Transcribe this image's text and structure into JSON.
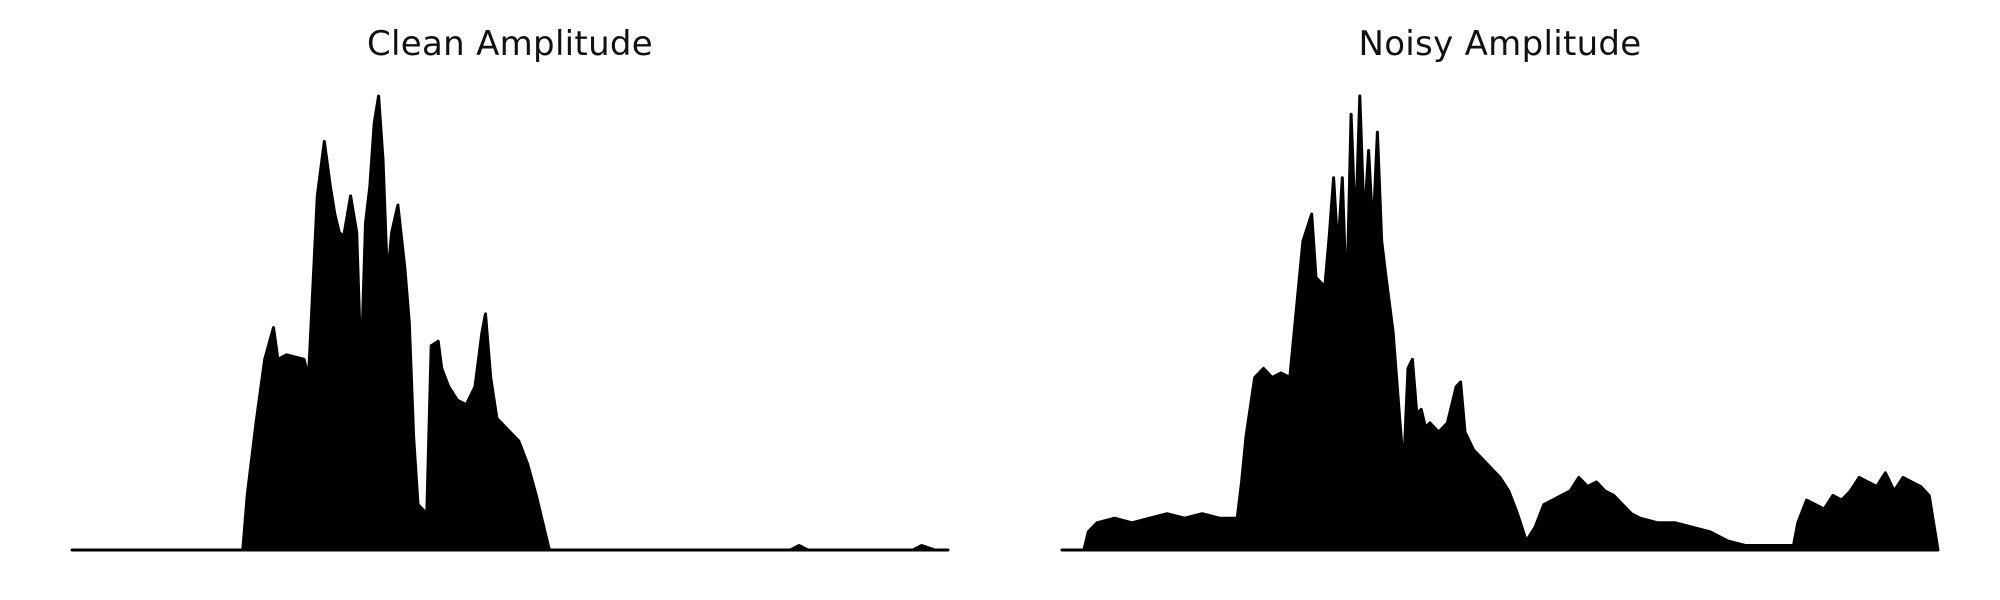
{
  "colors": {
    "waveform": "#000000",
    "background": "#ffffff"
  },
  "chart_data": [
    {
      "type": "area",
      "title": "Clean Amplitude",
      "grid": false,
      "axes_visible": false,
      "xlim": [
        0,
        1
      ],
      "ylim": [
        0,
        1
      ],
      "series": [
        {
          "values": [
            [
              0.0,
              0.0
            ],
            [
              0.195,
              0.0
            ],
            [
              0.2,
              0.12
            ],
            [
              0.21,
              0.28
            ],
            [
              0.22,
              0.42
            ],
            [
              0.23,
              0.49
            ],
            [
              0.235,
              0.42
            ],
            [
              0.245,
              0.43
            ],
            [
              0.265,
              0.42
            ],
            [
              0.27,
              0.38
            ],
            [
              0.28,
              0.78
            ],
            [
              0.288,
              0.9
            ],
            [
              0.295,
              0.8
            ],
            [
              0.3,
              0.74
            ],
            [
              0.305,
              0.7
            ],
            [
              0.31,
              0.69
            ],
            [
              0.318,
              0.78
            ],
            [
              0.325,
              0.7
            ],
            [
              0.33,
              0.4
            ],
            [
              0.335,
              0.72
            ],
            [
              0.34,
              0.8
            ],
            [
              0.345,
              0.94
            ],
            [
              0.35,
              1.0
            ],
            [
              0.355,
              0.86
            ],
            [
              0.36,
              0.6
            ],
            [
              0.365,
              0.7
            ],
            [
              0.372,
              0.76
            ],
            [
              0.38,
              0.62
            ],
            [
              0.385,
              0.5
            ],
            [
              0.39,
              0.25
            ],
            [
              0.395,
              0.1
            ],
            [
              0.405,
              0.08
            ],
            [
              0.41,
              0.45
            ],
            [
              0.418,
              0.46
            ],
            [
              0.422,
              0.4
            ],
            [
              0.43,
              0.36
            ],
            [
              0.44,
              0.33
            ],
            [
              0.45,
              0.32
            ],
            [
              0.46,
              0.36
            ],
            [
              0.468,
              0.48
            ],
            [
              0.472,
              0.52
            ],
            [
              0.478,
              0.38
            ],
            [
              0.485,
              0.29
            ],
            [
              0.5,
              0.26
            ],
            [
              0.51,
              0.24
            ],
            [
              0.52,
              0.19
            ],
            [
              0.53,
              0.12
            ],
            [
              0.54,
              0.04
            ],
            [
              0.545,
              0.0
            ],
            [
              0.82,
              0.0
            ],
            [
              0.83,
              0.01
            ],
            [
              0.84,
              0.0
            ],
            [
              0.96,
              0.0
            ],
            [
              0.97,
              0.01
            ],
            [
              0.985,
              0.0
            ],
            [
              1.0,
              0.0
            ]
          ]
        }
      ]
    },
    {
      "type": "area",
      "title": "Noisy Amplitude",
      "grid": false,
      "axes_visible": false,
      "xlim": [
        0,
        1
      ],
      "ylim": [
        0,
        1
      ],
      "series": [
        {
          "values": [
            [
              0.0,
              0.0
            ],
            [
              0.025,
              0.0
            ],
            [
              0.03,
              0.04
            ],
            [
              0.04,
              0.06
            ],
            [
              0.06,
              0.07
            ],
            [
              0.08,
              0.06
            ],
            [
              0.1,
              0.07
            ],
            [
              0.12,
              0.08
            ],
            [
              0.14,
              0.07
            ],
            [
              0.16,
              0.08
            ],
            [
              0.18,
              0.07
            ],
            [
              0.2,
              0.07
            ],
            [
              0.205,
              0.15
            ],
            [
              0.21,
              0.25
            ],
            [
              0.22,
              0.38
            ],
            [
              0.23,
              0.4
            ],
            [
              0.24,
              0.38
            ],
            [
              0.25,
              0.39
            ],
            [
              0.26,
              0.38
            ],
            [
              0.275,
              0.68
            ],
            [
              0.285,
              0.74
            ],
            [
              0.29,
              0.6
            ],
            [
              0.3,
              0.58
            ],
            [
              0.305,
              0.69
            ],
            [
              0.31,
              0.82
            ],
            [
              0.315,
              0.66
            ],
            [
              0.32,
              0.82
            ],
            [
              0.325,
              0.54
            ],
            [
              0.33,
              0.96
            ],
            [
              0.335,
              0.7
            ],
            [
              0.34,
              1.0
            ],
            [
              0.345,
              0.72
            ],
            [
              0.35,
              0.88
            ],
            [
              0.355,
              0.7
            ],
            [
              0.36,
              0.92
            ],
            [
              0.365,
              0.68
            ],
            [
              0.37,
              0.6
            ],
            [
              0.378,
              0.48
            ],
            [
              0.385,
              0.3
            ],
            [
              0.39,
              0.18
            ],
            [
              0.395,
              0.4
            ],
            [
              0.4,
              0.42
            ],
            [
              0.405,
              0.3
            ],
            [
              0.41,
              0.31
            ],
            [
              0.415,
              0.27
            ],
            [
              0.42,
              0.28
            ],
            [
              0.43,
              0.26
            ],
            [
              0.44,
              0.28
            ],
            [
              0.45,
              0.36
            ],
            [
              0.455,
              0.37
            ],
            [
              0.46,
              0.26
            ],
            [
              0.47,
              0.22
            ],
            [
              0.48,
              0.2
            ],
            [
              0.49,
              0.18
            ],
            [
              0.5,
              0.16
            ],
            [
              0.51,
              0.13
            ],
            [
              0.52,
              0.08
            ],
            [
              0.53,
              0.02
            ],
            [
              0.54,
              0.05
            ],
            [
              0.55,
              0.1
            ],
            [
              0.56,
              0.11
            ],
            [
              0.57,
              0.12
            ],
            [
              0.58,
              0.13
            ],
            [
              0.59,
              0.16
            ],
            [
              0.6,
              0.14
            ],
            [
              0.61,
              0.15
            ],
            [
              0.62,
              0.13
            ],
            [
              0.63,
              0.12
            ],
            [
              0.64,
              0.1
            ],
            [
              0.65,
              0.08
            ],
            [
              0.66,
              0.07
            ],
            [
              0.68,
              0.06
            ],
            [
              0.7,
              0.06
            ],
            [
              0.72,
              0.05
            ],
            [
              0.74,
              0.04
            ],
            [
              0.76,
              0.02
            ],
            [
              0.78,
              0.01
            ],
            [
              0.82,
              0.01
            ],
            [
              0.835,
              0.01
            ],
            [
              0.84,
              0.06
            ],
            [
              0.85,
              0.11
            ],
            [
              0.86,
              0.1
            ],
            [
              0.87,
              0.09
            ],
            [
              0.88,
              0.12
            ],
            [
              0.89,
              0.11
            ],
            [
              0.9,
              0.13
            ],
            [
              0.91,
              0.16
            ],
            [
              0.92,
              0.15
            ],
            [
              0.93,
              0.14
            ],
            [
              0.94,
              0.17
            ],
            [
              0.95,
              0.13
            ],
            [
              0.96,
              0.16
            ],
            [
              0.97,
              0.15
            ],
            [
              0.98,
              0.14
            ],
            [
              0.99,
              0.12
            ],
            [
              1.0,
              0.0
            ]
          ]
        }
      ]
    }
  ]
}
